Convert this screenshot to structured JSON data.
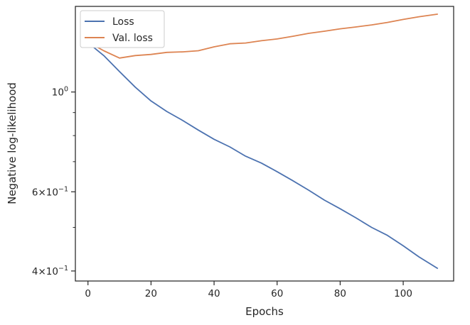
{
  "chart_data": {
    "type": "line",
    "xlabel": "Epochs",
    "ylabel": "Negative log-likelihood",
    "yscale": "log",
    "xlim": [
      -4,
      116
    ],
    "ylim": [
      0.38,
      1.55
    ],
    "grid": false,
    "legend_position": "top-left",
    "x_ticks": [
      0,
      20,
      40,
      60,
      80,
      100
    ],
    "x_tick_labels": [
      "0",
      "20",
      "40",
      "60",
      "80",
      "100"
    ],
    "y_major_ticks": [
      {
        "value": 1.0,
        "base": "10",
        "exponent": "0"
      },
      {
        "value": 0.6,
        "coef": "6",
        "times": "×",
        "base": "10",
        "exponent": "−1"
      },
      {
        "value": 0.4,
        "coef": "4",
        "times": "×",
        "base": "10",
        "exponent": "−1"
      }
    ],
    "y_minor_ticks": [
      0.5,
      0.7,
      0.8,
      0.9
    ],
    "series": [
      {
        "name": "Loss",
        "color": "#4c72b0",
        "x": [
          1,
          5,
          10,
          15,
          20,
          25,
          30,
          35,
          40,
          45,
          50,
          55,
          60,
          65,
          70,
          75,
          80,
          85,
          90,
          95,
          100,
          105,
          111
        ],
        "y": [
          1.27,
          1.205,
          1.11,
          1.025,
          0.955,
          0.905,
          0.865,
          0.823,
          0.785,
          0.755,
          0.72,
          0.695,
          0.665,
          0.635,
          0.605,
          0.575,
          0.55,
          0.525,
          0.5,
          0.48,
          0.455,
          0.43,
          0.405
        ]
      },
      {
        "name": "Val. loss",
        "color": "#dd8452",
        "x": [
          1,
          5,
          10,
          15,
          20,
          25,
          30,
          35,
          40,
          45,
          50,
          55,
          60,
          65,
          70,
          75,
          80,
          85,
          90,
          95,
          100,
          105,
          111
        ],
        "y": [
          1.28,
          1.235,
          1.19,
          1.205,
          1.212,
          1.225,
          1.228,
          1.235,
          1.26,
          1.28,
          1.285,
          1.3,
          1.312,
          1.33,
          1.35,
          1.365,
          1.382,
          1.395,
          1.41,
          1.428,
          1.45,
          1.47,
          1.49
        ]
      }
    ]
  }
}
